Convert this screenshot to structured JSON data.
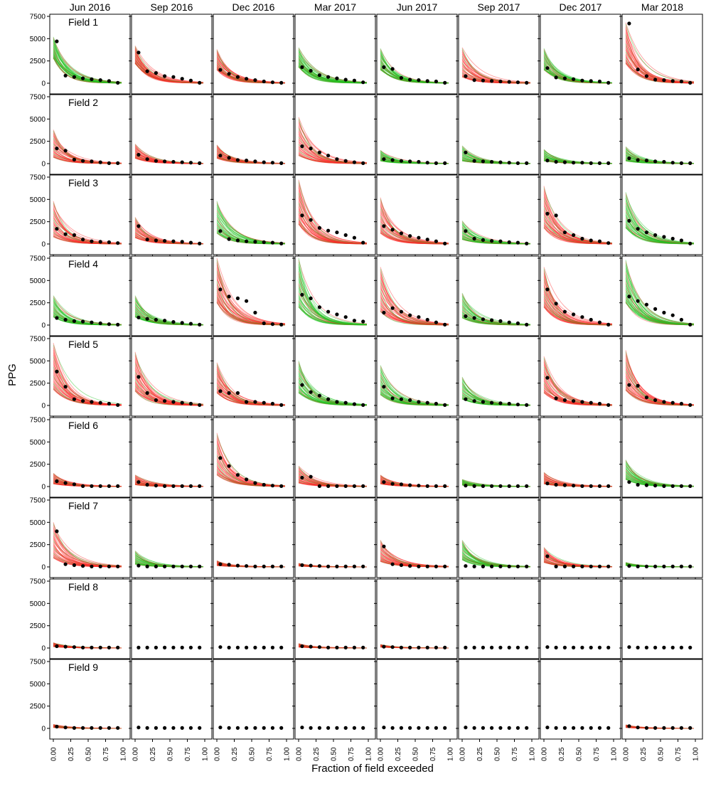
{
  "chart_data": {
    "type": "line",
    "layout": "small-multiples grid (9 rows x 8 columns)",
    "ylabel": "PPG",
    "xlabel": "Fraction of field exceeded",
    "columns": [
      "Jun 2016",
      "Sep 2016",
      "Dec 2016",
      "Mar 2017",
      "Jun 2017",
      "Sep 2017",
      "Dec 2017",
      "Mar 2018"
    ],
    "rows": [
      "Field 1",
      "Field 2",
      "Field 3",
      "Field 4",
      "Field 5",
      "Field 6",
      "Field 7",
      "Field 8",
      "Field 9"
    ],
    "xlim": [
      0,
      1
    ],
    "ylim": [
      0,
      7500
    ],
    "xticks": [
      "0.00",
      "0.25",
      "0.50",
      "0.75",
      "1.00"
    ],
    "yticks": [
      "0",
      "2500",
      "5000",
      "7500"
    ],
    "colors": {
      "red": "#ff2a2a",
      "green": "#22c322",
      "points": "#000000",
      "axis": "#000000"
    },
    "observed_x": [
      0.05,
      0.175,
      0.3,
      0.425,
      0.55,
      0.675,
      0.8,
      0.925
    ],
    "panels": [
      [
        {
          "band": "green",
          "lo": 2800,
          "hi": 5200,
          "obs": [
            4700,
            850,
            700,
            550,
            450,
            350,
            250,
            50
          ]
        },
        {
          "band": "red",
          "lo": 2200,
          "hi": 4200,
          "obs": [
            3450,
            1350,
            1150,
            800,
            700,
            500,
            300,
            50
          ]
        },
        {
          "band": "red",
          "lo": 1500,
          "hi": 3800,
          "obs": [
            1500,
            1050,
            700,
            500,
            350,
            200,
            100,
            50
          ]
        },
        {
          "band": "green",
          "lo": 1800,
          "hi": 4000,
          "obs": [
            1800,
            1400,
            900,
            700,
            550,
            400,
            300,
            100
          ]
        },
        {
          "band": "green",
          "lo": 1500,
          "hi": 3900,
          "obs": [
            1800,
            1600,
            600,
            400,
            350,
            250,
            200,
            50
          ]
        },
        {
          "band": "red",
          "lo": 700,
          "hi": 4000,
          "obs": [
            800,
            350,
            300,
            250,
            200,
            150,
            100,
            50
          ]
        },
        {
          "band": "green",
          "lo": 1500,
          "hi": 3900,
          "obs": [
            1700,
            650,
            550,
            450,
            300,
            250,
            200,
            50
          ]
        },
        {
          "band": "red",
          "lo": 2200,
          "hi": 6800,
          "obs": [
            6700,
            1550,
            800,
            400,
            350,
            250,
            200,
            50
          ]
        }
      ],
      [
        {
          "band": "red",
          "lo": 700,
          "hi": 3800,
          "obs": [
            1700,
            1450,
            450,
            300,
            250,
            150,
            50,
            50
          ]
        },
        {
          "band": "red",
          "lo": 600,
          "hi": 2200,
          "obs": [
            1000,
            500,
            300,
            250,
            200,
            150,
            100,
            50
          ]
        },
        {
          "band": "red",
          "lo": 600,
          "hi": 2100,
          "obs": [
            900,
            650,
            400,
            350,
            250,
            150,
            100,
            50
          ]
        },
        {
          "band": "red",
          "lo": 900,
          "hi": 5200,
          "obs": [
            1950,
            1700,
            1250,
            900,
            500,
            300,
            150,
            50
          ]
        },
        {
          "band": "green",
          "lo": 300,
          "hi": 1500,
          "obs": [
            500,
            400,
            300,
            250,
            200,
            100,
            50,
            50
          ]
        },
        {
          "band": "green",
          "lo": 300,
          "hi": 2000,
          "obs": [
            1250,
            300,
            250,
            200,
            150,
            100,
            50,
            50
          ]
        },
        {
          "band": "green",
          "lo": 300,
          "hi": 1600,
          "obs": [
            350,
            200,
            150,
            100,
            100,
            50,
            50,
            50
          ]
        },
        {
          "band": "green",
          "lo": 300,
          "hi": 1900,
          "obs": [
            600,
            400,
            350,
            250,
            200,
            100,
            50,
            50
          ]
        }
      ],
      [
        {
          "band": "red",
          "lo": 800,
          "hi": 4800,
          "obs": [
            1700,
            1100,
            1000,
            500,
            300,
            250,
            200,
            100
          ]
        },
        {
          "band": "red",
          "lo": 700,
          "hi": 3000,
          "obs": [
            2000,
            500,
            400,
            350,
            300,
            250,
            150,
            50
          ]
        },
        {
          "band": "green",
          "lo": 1200,
          "hi": 4800,
          "obs": [
            1450,
            550,
            400,
            300,
            250,
            200,
            150,
            50
          ]
        },
        {
          "band": "red",
          "lo": 2200,
          "hi": 7200,
          "obs": [
            3200,
            2700,
            1800,
            1500,
            1300,
            1000,
            700,
            150
          ]
        },
        {
          "band": "red",
          "lo": 1200,
          "hi": 5200,
          "obs": [
            2000,
            1600,
            1200,
            900,
            700,
            500,
            300,
            50
          ]
        },
        {
          "band": "green",
          "lo": 500,
          "hi": 2600,
          "obs": [
            1450,
            600,
            450,
            350,
            300,
            200,
            150,
            50
          ]
        },
        {
          "band": "red",
          "lo": 1800,
          "hi": 6500,
          "obs": [
            3400,
            3200,
            1300,
            1000,
            600,
            400,
            300,
            100
          ]
        },
        {
          "band": "green",
          "lo": 1800,
          "hi": 5800,
          "obs": [
            2600,
            1700,
            1300,
            1000,
            800,
            600,
            400,
            50
          ]
        }
      ],
      [
        {
          "band": "green",
          "lo": 900,
          "hi": 3300,
          "obs": [
            800,
            600,
            450,
            400,
            300,
            200,
            100,
            50
          ]
        },
        {
          "band": "green",
          "lo": 900,
          "hi": 3300,
          "obs": [
            850,
            700,
            600,
            500,
            350,
            250,
            150,
            50
          ]
        },
        {
          "band": "red",
          "lo": 2500,
          "hi": 7500,
          "obs": [
            4000,
            3200,
            3000,
            2700,
            1400,
            200,
            100,
            50
          ]
        },
        {
          "band": "green",
          "lo": 2000,
          "hi": 7500,
          "obs": [
            3400,
            3000,
            2000,
            1500,
            1200,
            900,
            500,
            400
          ]
        },
        {
          "band": "red",
          "lo": 1500,
          "hi": 6500,
          "obs": [
            1400,
            1900,
            1500,
            1100,
            900,
            600,
            300,
            50
          ]
        },
        {
          "band": "green",
          "lo": 800,
          "hi": 3600,
          "obs": [
            1000,
            800,
            650,
            550,
            450,
            300,
            200,
            50
          ]
        },
        {
          "band": "red",
          "lo": 2000,
          "hi": 6500,
          "obs": [
            4000,
            2400,
            1500,
            1200,
            900,
            600,
            300,
            50
          ]
        },
        {
          "band": "green",
          "lo": 2500,
          "hi": 7300,
          "obs": [
            3200,
            2700,
            2300,
            1800,
            1400,
            1100,
            600,
            50
          ]
        }
      ],
      [
        {
          "band": "red",
          "lo": 1800,
          "hi": 7000,
          "obs": [
            3800,
            2100,
            700,
            500,
            400,
            300,
            200,
            50
          ]
        },
        {
          "band": "red",
          "lo": 1600,
          "hi": 6000,
          "obs": [
            3200,
            1400,
            600,
            500,
            400,
            300,
            200,
            50
          ]
        },
        {
          "band": "red",
          "lo": 1400,
          "hi": 4800,
          "obs": [
            1600,
            1400,
            1400,
            400,
            400,
            300,
            200,
            50
          ]
        },
        {
          "band": "green",
          "lo": 1400,
          "hi": 5000,
          "obs": [
            2300,
            1500,
            1100,
            700,
            400,
            300,
            150,
            50
          ]
        },
        {
          "band": "green",
          "lo": 1200,
          "hi": 4500,
          "obs": [
            2100,
            800,
            700,
            600,
            400,
            300,
            200,
            50
          ]
        },
        {
          "band": "green",
          "lo": 700,
          "hi": 3200,
          "obs": [
            700,
            500,
            400,
            300,
            250,
            200,
            100,
            50
          ]
        },
        {
          "band": "red",
          "lo": 1400,
          "hi": 5500,
          "obs": [
            3100,
            800,
            600,
            500,
            400,
            300,
            200,
            50
          ]
        },
        {
          "band": "red",
          "lo": 1700,
          "hi": 6200,
          "obs": [
            2300,
            2200,
            900,
            600,
            400,
            300,
            200,
            50
          ]
        }
      ],
      [
        {
          "band": "red",
          "lo": 300,
          "hi": 1500,
          "obs": [
            600,
            400,
            250,
            50,
            50,
            50,
            50,
            50
          ]
        },
        {
          "band": "red",
          "lo": 200,
          "hi": 1300,
          "obs": [
            500,
            200,
            100,
            50,
            50,
            50,
            50,
            50
          ]
        },
        {
          "band": "red",
          "lo": 1300,
          "hi": 6000,
          "obs": [
            3200,
            2300,
            1300,
            800,
            400,
            200,
            100,
            50
          ]
        },
        {
          "band": "red",
          "lo": 400,
          "hi": 2300,
          "obs": [
            1000,
            1100,
            50,
            50,
            50,
            50,
            50,
            50
          ]
        },
        {
          "band": "red",
          "lo": 300,
          "hi": 1300,
          "obs": [
            500,
            300,
            250,
            150,
            100,
            50,
            50,
            50
          ]
        },
        {
          "band": "green",
          "lo": 150,
          "hi": 800,
          "obs": [
            100,
            50,
            50,
            50,
            50,
            50,
            50,
            50
          ]
        },
        {
          "band": "red",
          "lo": 300,
          "hi": 1600,
          "obs": [
            350,
            200,
            150,
            100,
            50,
            50,
            50,
            50
          ]
        },
        {
          "band": "green",
          "lo": 800,
          "hi": 3000,
          "obs": [
            500,
            200,
            150,
            100,
            50,
            50,
            50,
            50
          ]
        }
      ],
      [
        {
          "band": "red",
          "lo": 1000,
          "hi": 5000,
          "obs": [
            4000,
            300,
            200,
            100,
            50,
            50,
            50,
            50
          ]
        },
        {
          "band": "green",
          "lo": 300,
          "hi": 1800,
          "obs": [
            150,
            50,
            50,
            50,
            50,
            50,
            50,
            50
          ]
        },
        {
          "band": "red",
          "lo": 150,
          "hi": 700,
          "obs": [
            300,
            250,
            150,
            100,
            50,
            50,
            50,
            50
          ]
        },
        {
          "band": "red",
          "lo": 100,
          "hi": 400,
          "obs": [
            200,
            150,
            100,
            50,
            50,
            50,
            50,
            50
          ]
        },
        {
          "band": "red",
          "lo": 600,
          "hi": 3000,
          "obs": [
            2300,
            300,
            200,
            100,
            50,
            50,
            50,
            50
          ]
        },
        {
          "band": "green",
          "lo": 800,
          "hi": 3000,
          "obs": [
            100,
            50,
            50,
            50,
            50,
            50,
            50,
            50
          ]
        },
        {
          "band": "red",
          "lo": 500,
          "hi": 2200,
          "obs": [
            1200,
            50,
            50,
            50,
            50,
            50,
            50,
            50
          ]
        },
        {
          "band": "green",
          "lo": 150,
          "hi": 500,
          "obs": [
            100,
            50,
            50,
            50,
            50,
            50,
            50,
            50
          ]
        }
      ],
      [
        {
          "band": "red",
          "lo": 150,
          "hi": 600,
          "obs": [
            200,
            150,
            100,
            50,
            50,
            50,
            50,
            50
          ]
        },
        {
          "band": "none",
          "lo": 0,
          "hi": 0,
          "obs": [
            50,
            50,
            50,
            50,
            50,
            50,
            50,
            50
          ]
        },
        {
          "band": "none",
          "lo": 0,
          "hi": 0,
          "obs": [
            100,
            50,
            50,
            50,
            50,
            50,
            50,
            50
          ]
        },
        {
          "band": "red",
          "lo": 100,
          "hi": 500,
          "obs": [
            200,
            150,
            100,
            50,
            50,
            50,
            50,
            50
          ]
        },
        {
          "band": "red",
          "lo": 100,
          "hi": 400,
          "obs": [
            150,
            100,
            50,
            50,
            50,
            50,
            50,
            50
          ]
        },
        {
          "band": "none",
          "lo": 0,
          "hi": 0,
          "obs": [
            50,
            50,
            50,
            50,
            50,
            50,
            50,
            50
          ]
        },
        {
          "band": "none",
          "lo": 0,
          "hi": 0,
          "obs": [
            100,
            50,
            50,
            50,
            50,
            50,
            50,
            50
          ]
        },
        {
          "band": "none",
          "lo": 0,
          "hi": 0,
          "obs": [
            100,
            50,
            50,
            50,
            50,
            50,
            50,
            50
          ]
        }
      ],
      [
        {
          "band": "red",
          "lo": 100,
          "hi": 450,
          "obs": [
            200,
            100,
            50,
            50,
            50,
            50,
            50,
            50
          ]
        },
        {
          "band": "none",
          "lo": 0,
          "hi": 0,
          "obs": [
            100,
            50,
            50,
            50,
            50,
            50,
            50,
            50
          ]
        },
        {
          "band": "none",
          "lo": 0,
          "hi": 0,
          "obs": [
            100,
            50,
            50,
            50,
            50,
            50,
            50,
            50
          ]
        },
        {
          "band": "none",
          "lo": 0,
          "hi": 0,
          "obs": [
            100,
            50,
            50,
            50,
            50,
            50,
            50,
            50
          ]
        },
        {
          "band": "none",
          "lo": 0,
          "hi": 0,
          "obs": [
            100,
            50,
            50,
            50,
            50,
            50,
            50,
            50
          ]
        },
        {
          "band": "none",
          "lo": 0,
          "hi": 0,
          "obs": [
            100,
            50,
            50,
            50,
            50,
            50,
            50,
            50
          ]
        },
        {
          "band": "none",
          "lo": 0,
          "hi": 0,
          "obs": [
            100,
            50,
            50,
            50,
            50,
            50,
            50,
            50
          ]
        },
        {
          "band": "red",
          "lo": 100,
          "hi": 400,
          "obs": [
            250,
            100,
            50,
            50,
            50,
            50,
            50,
            50
          ]
        }
      ]
    ]
  }
}
